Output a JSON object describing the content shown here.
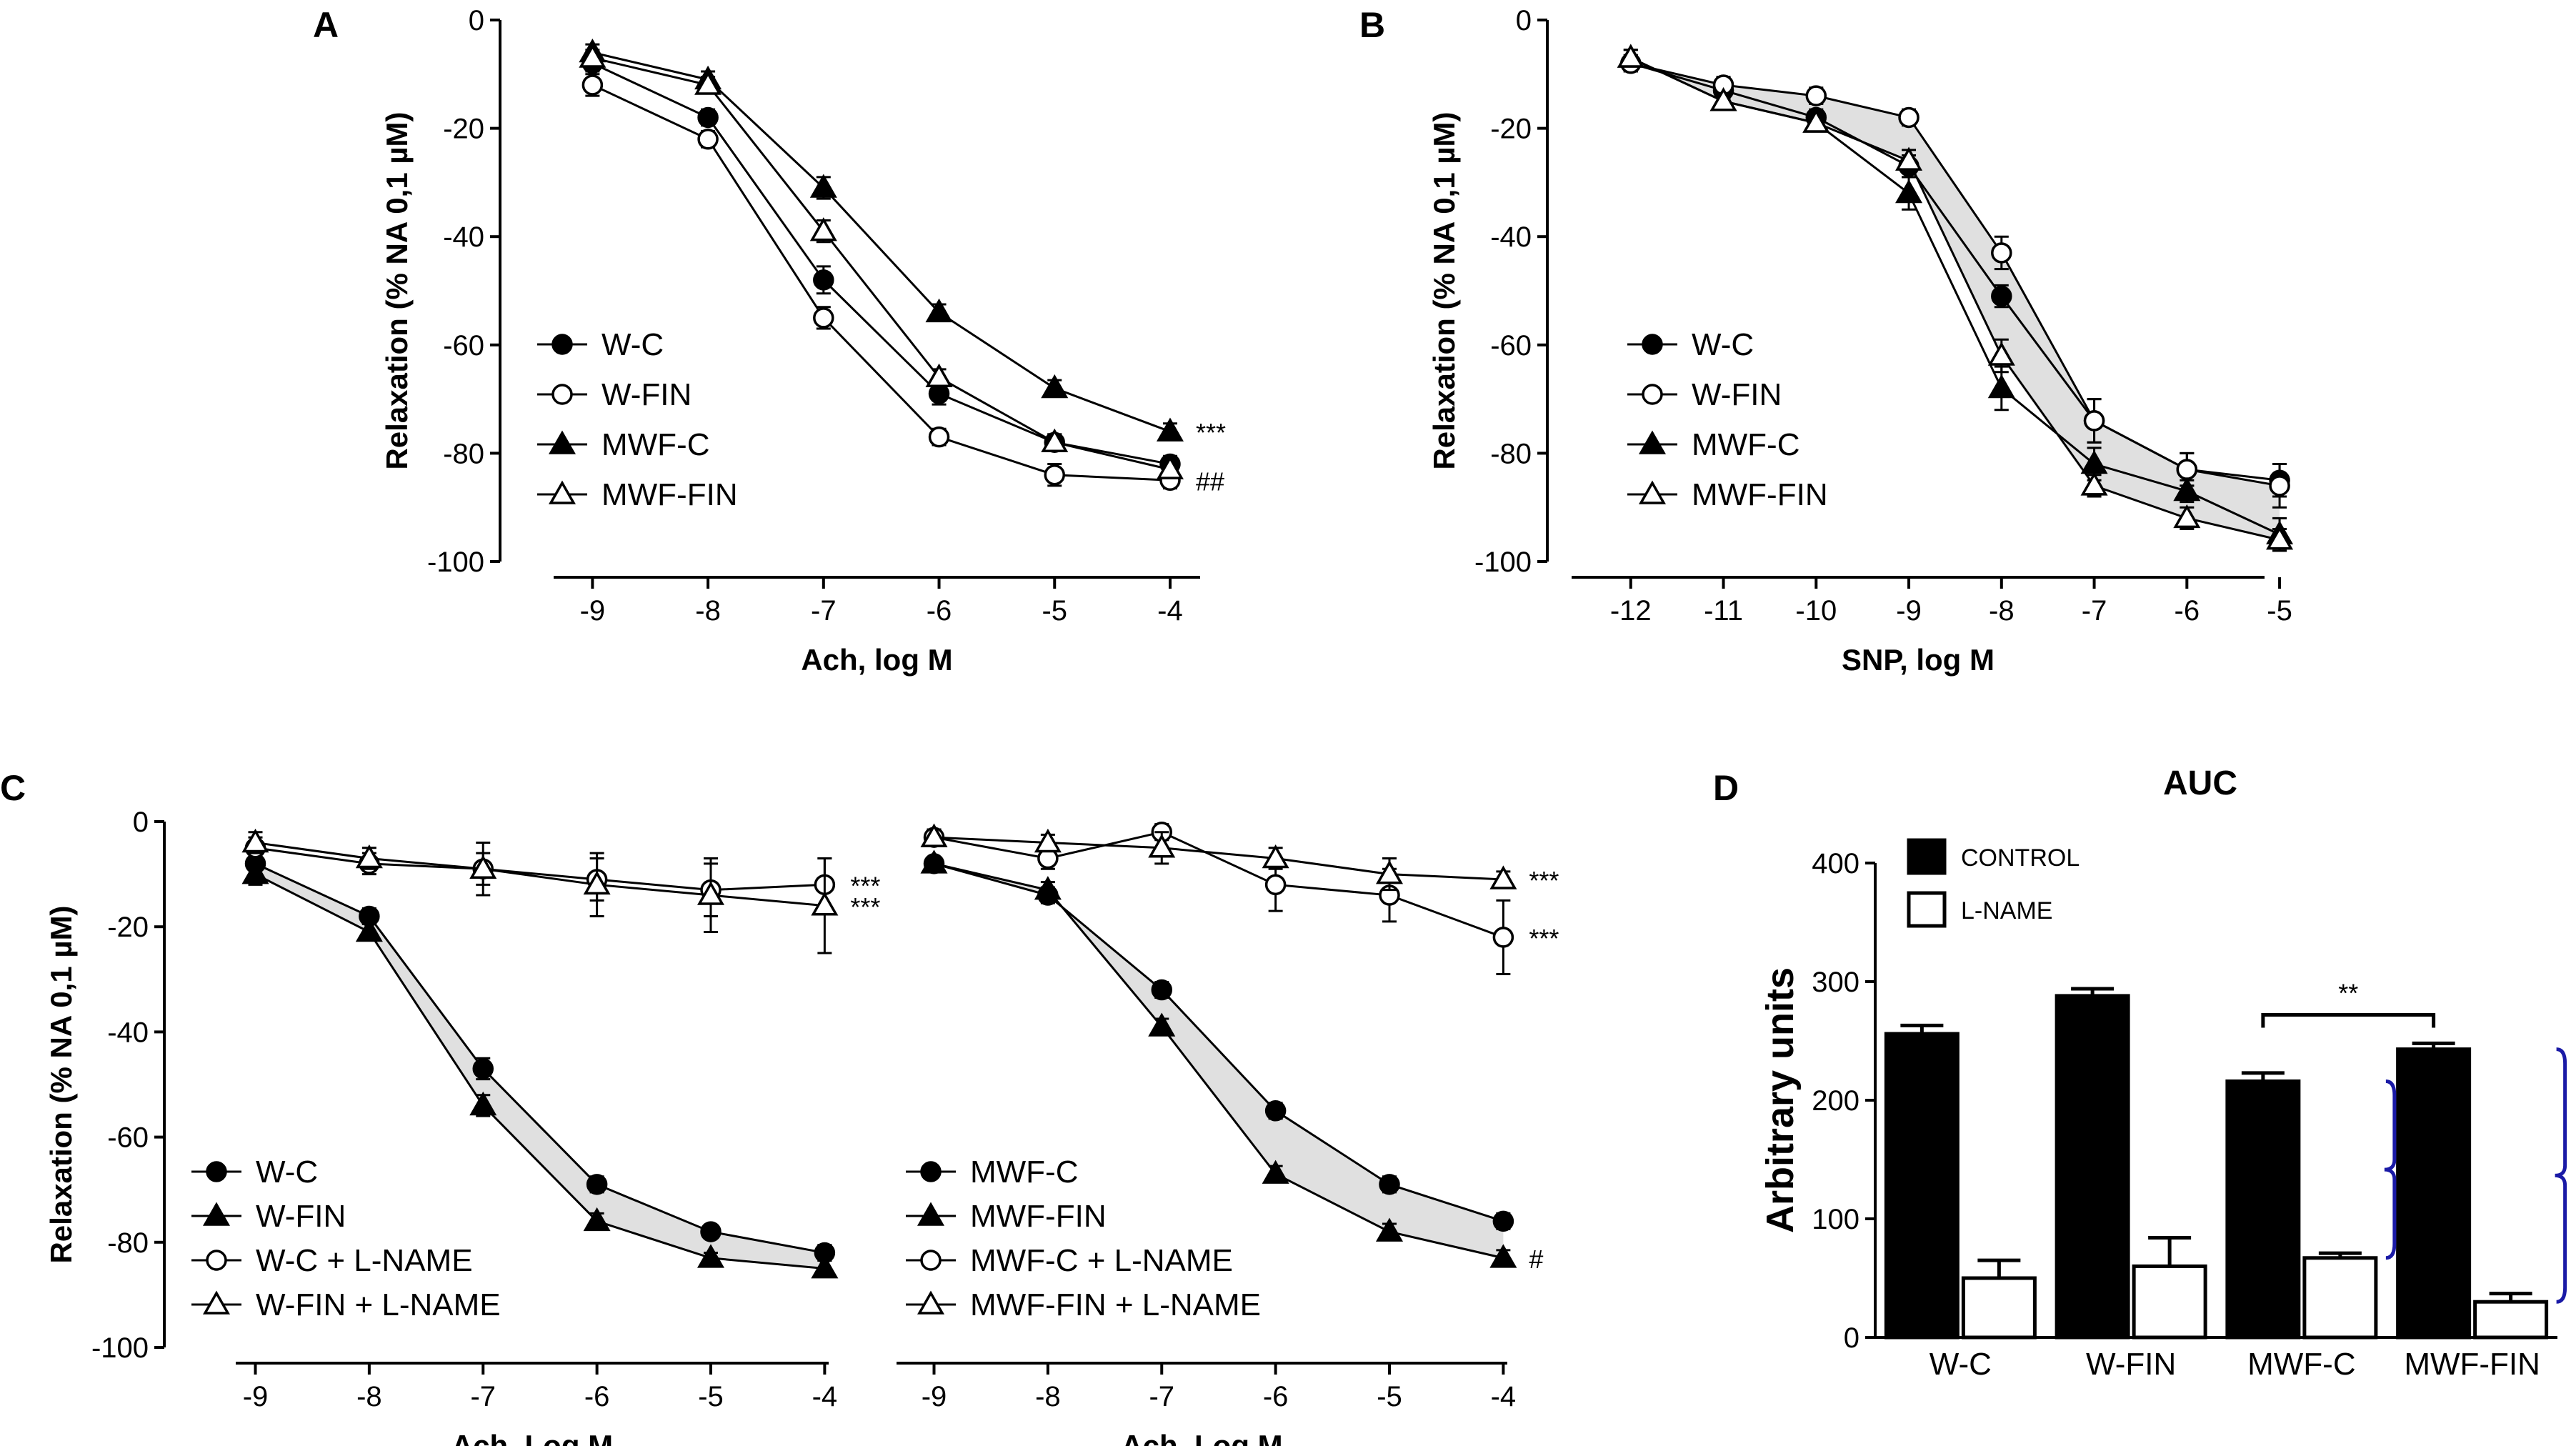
{
  "chart_data": [
    {
      "panel": "A",
      "type": "line",
      "xlabel": "Ach, log M",
      "ylabel": "Relaxation (% NA 0,1 µM)",
      "xlim": [
        -9.8,
        -3.4
      ],
      "ylim": [
        -100,
        0
      ],
      "xticks": [
        "-9",
        "-8",
        "-7",
        "-6",
        "-5",
        "-4"
      ],
      "yticks": [
        "0",
        "-20",
        "-40",
        "-60",
        "-80",
        "-100"
      ],
      "x": [
        -9,
        -8,
        -7,
        -6,
        -5,
        -4
      ],
      "series": [
        {
          "name": "W-C",
          "marker": "circle",
          "filled": true,
          "values": [
            -8,
            -18,
            -48,
            -69,
            -78,
            -82
          ],
          "errors": [
            1.5,
            1.5,
            2.5,
            2,
            1.5,
            1.5
          ]
        },
        {
          "name": "W-FIN",
          "marker": "circle",
          "filled": false,
          "values": [
            -12,
            -22,
            -55,
            -77,
            -84,
            -85
          ],
          "errors": [
            2,
            1.5,
            2,
            1.5,
            2,
            1.5
          ]
        },
        {
          "name": "MWF-C",
          "marker": "triangle",
          "filled": true,
          "values": [
            -6,
            -11,
            -31,
            -54,
            -68,
            -76
          ],
          "errors": [
            1.5,
            1.5,
            2,
            1.5,
            1.5,
            1.5
          ]
        },
        {
          "name": "MWF-FIN",
          "marker": "triangle",
          "filled": false,
          "values": [
            -7,
            -12,
            -39,
            -66,
            -78,
            -83
          ],
          "errors": [
            1.5,
            1.5,
            2,
            1.5,
            1.5,
            1.5
          ]
        }
      ],
      "annotations": [
        {
          "text": "***",
          "series": "MWF-C"
        },
        {
          "text": "##",
          "series": "W-FIN"
        }
      ]
    },
    {
      "panel": "B",
      "type": "line",
      "xlabel": "SNP, log M",
      "ylabel": "Relaxation (% NA 0,1 µM)",
      "xlim": [
        -12.9,
        -4.7
      ],
      "ylim": [
        -100,
        0
      ],
      "xticks": [
        "-12",
        "-11",
        "-10",
        "-9",
        "-8",
        "-7",
        "-6",
        "-5"
      ],
      "yticks": [
        "0",
        "-20",
        "-40",
        "-60",
        "-80",
        "-100"
      ],
      "x": [
        -12,
        -11,
        -10,
        -9,
        -8,
        -7,
        -6,
        -5
      ],
      "series": [
        {
          "name": "W-C",
          "marker": "circle",
          "filled": true,
          "values": [
            -8,
            -13,
            -18,
            -27,
            -51,
            -74,
            -83,
            -85
          ],
          "errors": [
            1.5,
            1.5,
            1.5,
            2,
            2,
            4,
            3,
            3
          ]
        },
        {
          "name": "W-FIN",
          "marker": "circle",
          "filled": false,
          "values": [
            -8,
            -12,
            -14,
            -18,
            -43,
            -74,
            -83,
            -86
          ],
          "errors": [
            1.5,
            1.5,
            1.5,
            1.5,
            3,
            4,
            3,
            4
          ]
        },
        {
          "name": "MWF-C",
          "marker": "triangle",
          "filled": true,
          "values": [
            -7,
            -15,
            -19,
            -32,
            -68,
            -82,
            -87,
            -95
          ],
          "errors": [
            1.5,
            1.5,
            1.5,
            3,
            4,
            3,
            2,
            3
          ]
        },
        {
          "name": "MWF-FIN",
          "marker": "triangle",
          "filled": false,
          "values": [
            -7,
            -15,
            -19,
            -26,
            -62,
            -86,
            -92,
            -96
          ],
          "errors": [
            1.5,
            1.5,
            1.5,
            2,
            3,
            2,
            2,
            2
          ]
        }
      ]
    },
    {
      "panel": "C",
      "type": "line",
      "xlabel": "Ach, Log M",
      "ylabel": "Relaxation (% NA 0,1 µM)",
      "xlim": [
        -9.8,
        -3.4
      ],
      "ylim": [
        -100,
        0
      ],
      "xticks": [
        "-9",
        "-8",
        "-7",
        "-6",
        "-5",
        "-4"
      ],
      "yticks": [
        "0",
        "-20",
        "-40",
        "-60",
        "-80",
        "-100"
      ],
      "x": [
        -9,
        -8,
        -7,
        -6,
        -5,
        -4
      ],
      "series": [
        {
          "name": "W-C",
          "marker": "circle",
          "filled": true,
          "values": [
            -8,
            -18,
            -47,
            -69,
            -78,
            -82
          ],
          "errors": [
            2,
            1.5,
            2,
            1.5,
            1,
            1.5
          ]
        },
        {
          "name": "W-FIN",
          "marker": "triangle",
          "filled": true,
          "values": [
            -10,
            -21,
            -54,
            -76,
            -83,
            -85
          ],
          "errors": [
            2,
            1.5,
            2,
            1.5,
            1,
            1.5
          ]
        },
        {
          "name": "W-C + L-NAME",
          "marker": "circle",
          "filled": false,
          "values": [
            -5,
            -8,
            -9,
            -11,
            -13,
            -12
          ],
          "errors": [
            2,
            2,
            3,
            4,
            5,
            5
          ]
        },
        {
          "name": "W-FIN + L-NAME",
          "marker": "triangle",
          "filled": false,
          "values": [
            -4,
            -7,
            -9,
            -12,
            -14,
            -16
          ],
          "errors": [
            2,
            2,
            5,
            6,
            7,
            9
          ]
        }
      ],
      "annotations": [
        {
          "text": "***",
          "series": "W-C + L-NAME"
        },
        {
          "text": "***",
          "series": "W-FIN + L-NAME"
        }
      ]
    },
    {
      "panel": "C",
      "type": "line",
      "xlabel": "Ach, Log M",
      "xlim": [
        -9.8,
        -3.4
      ],
      "ylim": [
        -100,
        0
      ],
      "xticks": [
        "-9",
        "-8",
        "-7",
        "-6",
        "-5",
        "-4"
      ],
      "x": [
        -9,
        -8,
        -7,
        -6,
        -5,
        -4
      ],
      "series": [
        {
          "name": "MWF-C",
          "marker": "circle",
          "filled": true,
          "values": [
            -8,
            -14,
            -32,
            -55,
            -69,
            -76
          ],
          "errors": [
            1,
            1.5,
            1.5,
            1.5,
            1.5,
            1.5
          ]
        },
        {
          "name": "MWF-FIN",
          "marker": "triangle",
          "filled": true,
          "values": [
            -8,
            -13,
            -39,
            -67,
            -78,
            -83
          ],
          "errors": [
            1,
            1.5,
            1.5,
            1.5,
            1.5,
            1.5
          ]
        },
        {
          "name": "MWF-C + L-NAME",
          "marker": "circle",
          "filled": false,
          "values": [
            -3,
            -7,
            -2,
            -12,
            -14,
            -22
          ],
          "errors": [
            1.5,
            2,
            1.5,
            5,
            5,
            7
          ]
        },
        {
          "name": "MWF-FIN + L-NAME",
          "marker": "triangle",
          "filled": false,
          "values": [
            -3,
            -4,
            -5,
            -7,
            -10,
            -11
          ],
          "errors": [
            1.5,
            1.5,
            3,
            2,
            3,
            1.5
          ]
        }
      ],
      "annotations": [
        {
          "text": "***",
          "series": "MWF-FIN + L-NAME"
        },
        {
          "text": "***",
          "series": "MWF-C + L-NAME"
        },
        {
          "text": "#",
          "series": "MWF-FIN"
        }
      ]
    },
    {
      "panel": "D",
      "type": "bar",
      "title": "AUC",
      "ylabel": "Arbitrary units",
      "ylim": [
        0,
        400
      ],
      "yticks": [
        "0",
        "100",
        "200",
        "300",
        "400"
      ],
      "categories": [
        "W-C",
        "W-FIN",
        "MWF-C",
        "MWF-FIN"
      ],
      "series": [
        {
          "name": "CONTROL",
          "color": "#000000",
          "values": [
            256,
            288,
            216,
            243
          ],
          "errors": [
            7,
            6,
            7,
            5
          ]
        },
        {
          "name": "L-NAME",
          "color": "#ffffff",
          "values": [
            50,
            60,
            67,
            30
          ],
          "errors": [
            15,
            24,
            4,
            7
          ]
        }
      ],
      "annotations": [
        {
          "text": "**",
          "between": [
            "MWF-C",
            "MWF-FIN"
          ]
        }
      ]
    }
  ],
  "panels": {
    "a": "A",
    "b": "B",
    "c": "C",
    "d": "D"
  },
  "colors": {
    "ink": "#000000",
    "shade": "#e0e0e0",
    "bracket": "#1a1aa6"
  }
}
